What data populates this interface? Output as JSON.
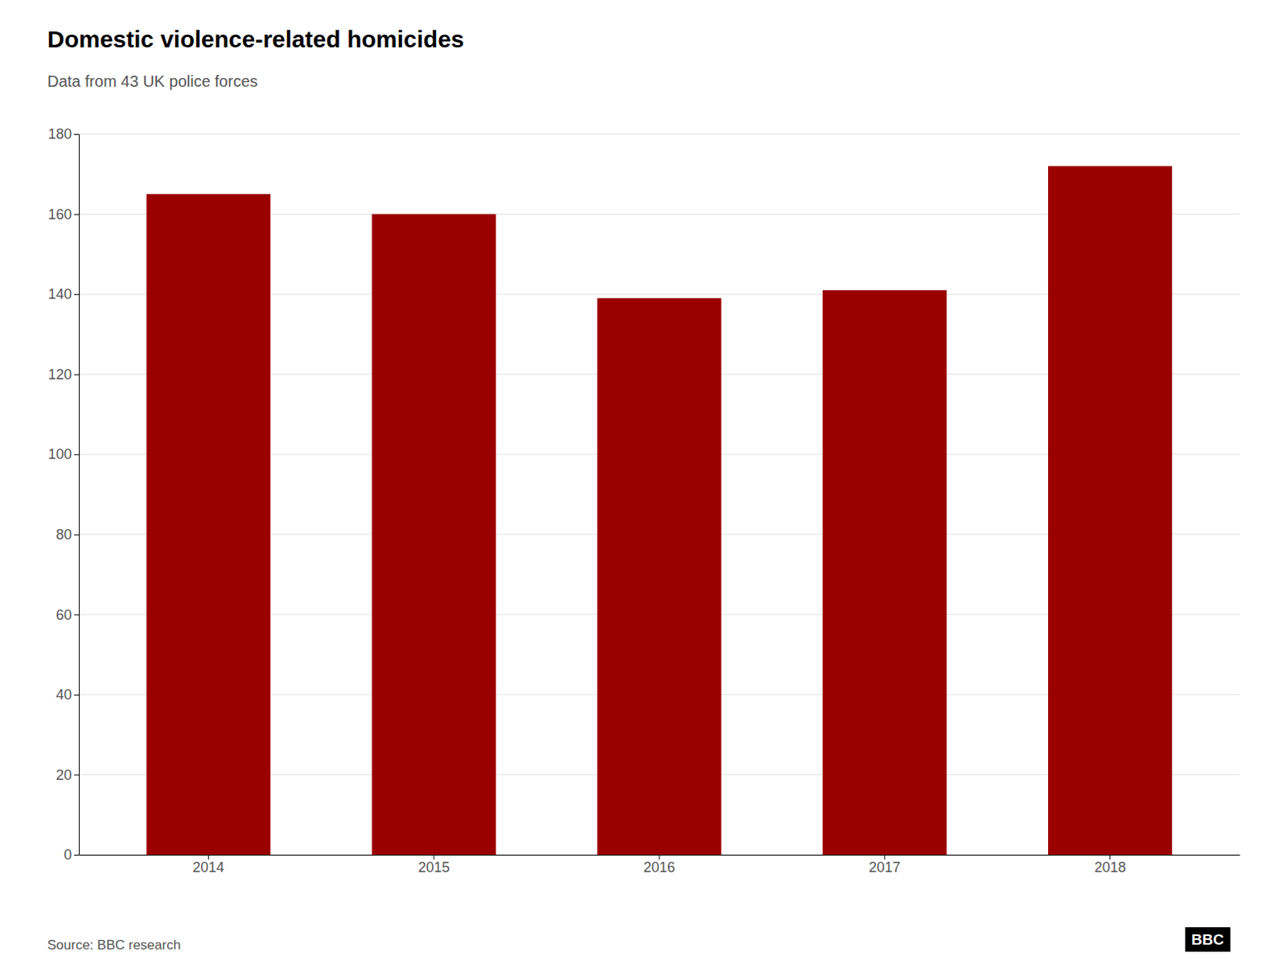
{
  "chart_data": {
    "type": "bar",
    "title": "Domestic violence-related homicides",
    "subtitle": "Data from 43 UK police forces",
    "categories": [
      "2014",
      "2015",
      "2016",
      "2017",
      "2018"
    ],
    "values": [
      165,
      160,
      139,
      141,
      172
    ],
    "color": "#9b0000",
    "ylim": [
      0,
      180
    ],
    "yticks": [
      0,
      20,
      40,
      60,
      80,
      100,
      120,
      140,
      160,
      180
    ],
    "grid": true,
    "annotations": [
      "Source: BBC research",
      "BBC"
    ]
  }
}
